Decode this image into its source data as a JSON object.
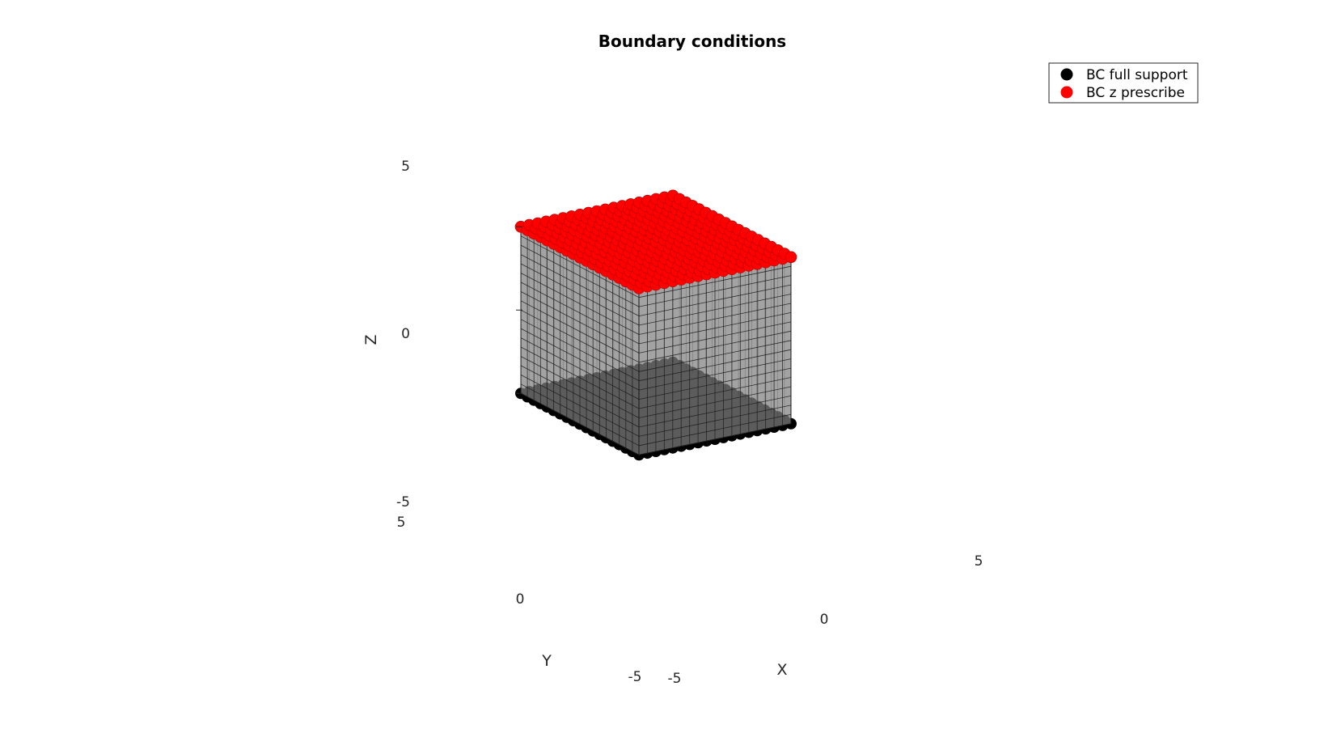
{
  "chart_data": {
    "type": "scatter3d",
    "title": "Boundary conditions",
    "xlabel": "X",
    "ylabel": "Y",
    "zlabel": "Z",
    "xlim": [
      -5,
      5
    ],
    "ylim": [
      -5,
      5
    ],
    "zlim": [
      -5,
      5
    ],
    "x_ticks": [
      "-5",
      "0",
      "5"
    ],
    "y_ticks": [
      "-5",
      "0",
      "5"
    ],
    "z_ticks": [
      "-5",
      "0",
      "5"
    ],
    "mesh": {
      "divisions": 18,
      "face_color": "#808080",
      "edge_color": "#1a1a1a"
    },
    "legend_position": "top-right",
    "series": [
      {
        "name": "BC full support",
        "color": "#000000",
        "z": -5,
        "grid_points_per_side": 19,
        "x_range": [
          -5,
          5
        ],
        "y_range": [
          -5,
          5
        ]
      },
      {
        "name": "BC z prescribe",
        "color": "#ff0000",
        "z": 5,
        "grid_points_per_side": 19,
        "x_range": [
          -5,
          5
        ],
        "y_range": [
          -5,
          5
        ]
      }
    ]
  }
}
